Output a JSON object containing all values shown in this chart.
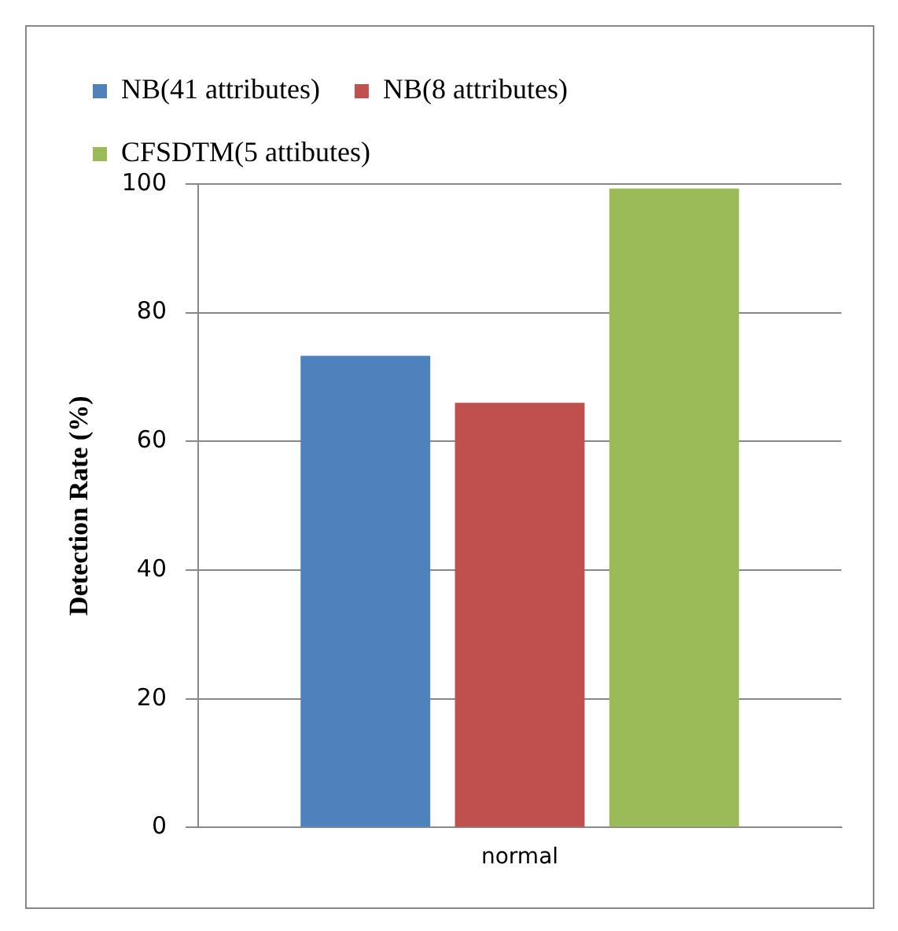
{
  "chart_data": {
    "type": "bar",
    "ylabel": "Detection Rate (%)",
    "categories": [
      "normal"
    ],
    "series": [
      {
        "name": "NB(41 attributes)",
        "color": "#4f81bd",
        "values": [
          73.3
        ]
      },
      {
        "name": "NB(8 attributes)",
        "color": "#c0504d",
        "values": [
          66
        ]
      },
      {
        "name": "CFSDTM(5 attibutes)",
        "color": "#9bbb59",
        "values": [
          99.3
        ]
      }
    ],
    "ylim": [
      0,
      100
    ],
    "yticks": [
      0,
      20,
      40,
      60,
      80,
      100
    ],
    "grid": "y",
    "legend": "top left"
  }
}
